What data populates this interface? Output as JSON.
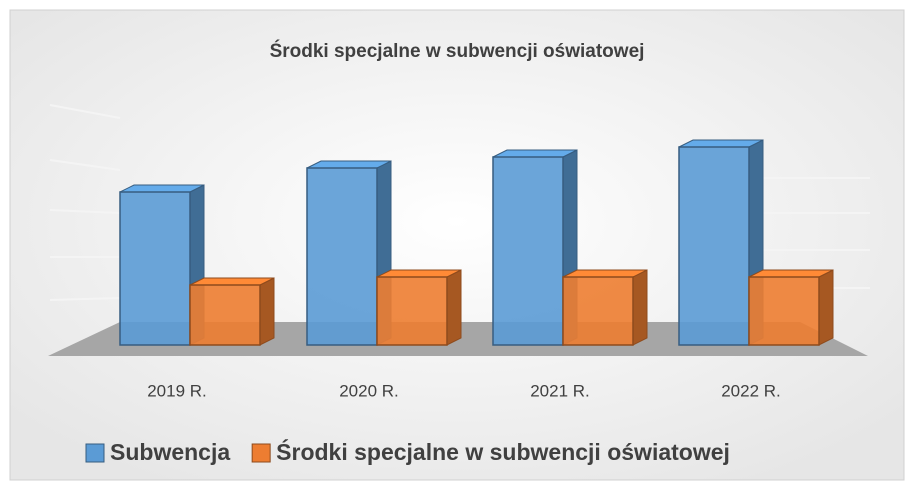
{
  "chart_data": {
    "type": "bar3d",
    "title": "Środki specjalne w subwencji oświatowej",
    "categories": [
      "2019 R.",
      "2020 R.",
      "2021 R.",
      "2022 R."
    ],
    "series": [
      {
        "name": "Subwencja",
        "color": "#5b9bd5",
        "values": [
          153,
          177,
          188,
          198
        ]
      },
      {
        "name": "Środki specjalne w subwencji oświatowej",
        "color": "#ed7d31",
        "values": [
          60,
          68,
          68,
          68
        ]
      }
    ],
    "ylim": [
      0,
      200
    ],
    "legend": "bottom"
  }
}
